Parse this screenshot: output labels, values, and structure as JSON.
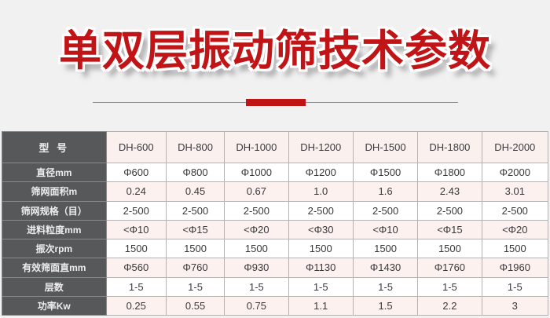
{
  "title": "单双层振动筛技术参数",
  "divider": {
    "accent_color": "#c11417"
  },
  "colors": {
    "page_bg": "#f1f1f2",
    "title_red": "#c11417",
    "label_column_bg": "#57585a",
    "row_pink": "#fcf1ef",
    "row_white": "#ffffff",
    "border": "#b3b3b6"
  },
  "table": {
    "header_label": "型 号",
    "models": [
      "DH-600",
      "DH-800",
      "DH-1000",
      "DH-1200",
      "DH-1500",
      "DH-1800",
      "DH-2000"
    ],
    "rows": [
      {
        "label": "直径mm",
        "values": [
          "Φ600",
          "Φ800",
          "Φ1000",
          "Φ1200",
          "Φ1500",
          "Φ1800",
          "Φ2000"
        ]
      },
      {
        "label": "筛网面积m",
        "values": [
          "0.24",
          "0.45",
          "0.67",
          "1.0",
          "1.6",
          "2.43",
          "3.01"
        ]
      },
      {
        "label": "筛网规格（目）",
        "values": [
          "2-500",
          "2-500",
          "2-500",
          "2-500",
          "2-500",
          "2-500",
          "2-500"
        ]
      },
      {
        "label": "进料粒度mm",
        "values": [
          "<Φ10",
          "<Φ15",
          "<Φ20",
          "<Φ30",
          "<Φ10",
          "<Φ15",
          "<Φ20"
        ]
      },
      {
        "label": "振次rpm",
        "values": [
          "1500",
          "1500",
          "1500",
          "1500",
          "1500",
          "1500",
          "1500"
        ]
      },
      {
        "label": "有效筛面直mm",
        "values": [
          "Φ560",
          "Φ760",
          "Φ930",
          "Φ1130",
          "Φ1430",
          "Φ1760",
          "Φ1960"
        ]
      },
      {
        "label": "层数",
        "values": [
          "1-5",
          "1-5",
          "1-5",
          "1-5",
          "1-5",
          "1-5",
          "1-5"
        ]
      },
      {
        "label": "功率Kw",
        "values": [
          "0.25",
          "0.55",
          "0.75",
          "1.1",
          "1.5",
          "2.2",
          "3"
        ]
      }
    ]
  },
  "chart_data": {
    "type": "table",
    "title": "单双层振动筛技术参数",
    "columns": [
      "型号",
      "DH-600",
      "DH-800",
      "DH-1000",
      "DH-1200",
      "DH-1500",
      "DH-1800",
      "DH-2000"
    ],
    "rows": [
      [
        "直径mm",
        "Φ600",
        "Φ800",
        "Φ1000",
        "Φ1200",
        "Φ1500",
        "Φ1800",
        "Φ2000"
      ],
      [
        "筛网面积m",
        "0.24",
        "0.45",
        "0.67",
        "1.0",
        "1.6",
        "2.43",
        "3.01"
      ],
      [
        "筛网规格（目）",
        "2-500",
        "2-500",
        "2-500",
        "2-500",
        "2-500",
        "2-500",
        "2-500"
      ],
      [
        "进料粒度mm",
        "<Φ10",
        "<Φ15",
        "<Φ20",
        "<Φ30",
        "<Φ10",
        "<Φ15",
        "<Φ20"
      ],
      [
        "振次rpm",
        "1500",
        "1500",
        "1500",
        "1500",
        "1500",
        "1500",
        "1500"
      ],
      [
        "有效筛面直mm",
        "Φ560",
        "Φ760",
        "Φ930",
        "Φ1130",
        "Φ1430",
        "Φ1760",
        "Φ1960"
      ],
      [
        "层数",
        "1-5",
        "1-5",
        "1-5",
        "1-5",
        "1-5",
        "1-5",
        "1-5"
      ],
      [
        "功率Kw",
        "0.25",
        "0.55",
        "0.75",
        "1.1",
        "1.5",
        "2.2",
        "3"
      ]
    ]
  }
}
